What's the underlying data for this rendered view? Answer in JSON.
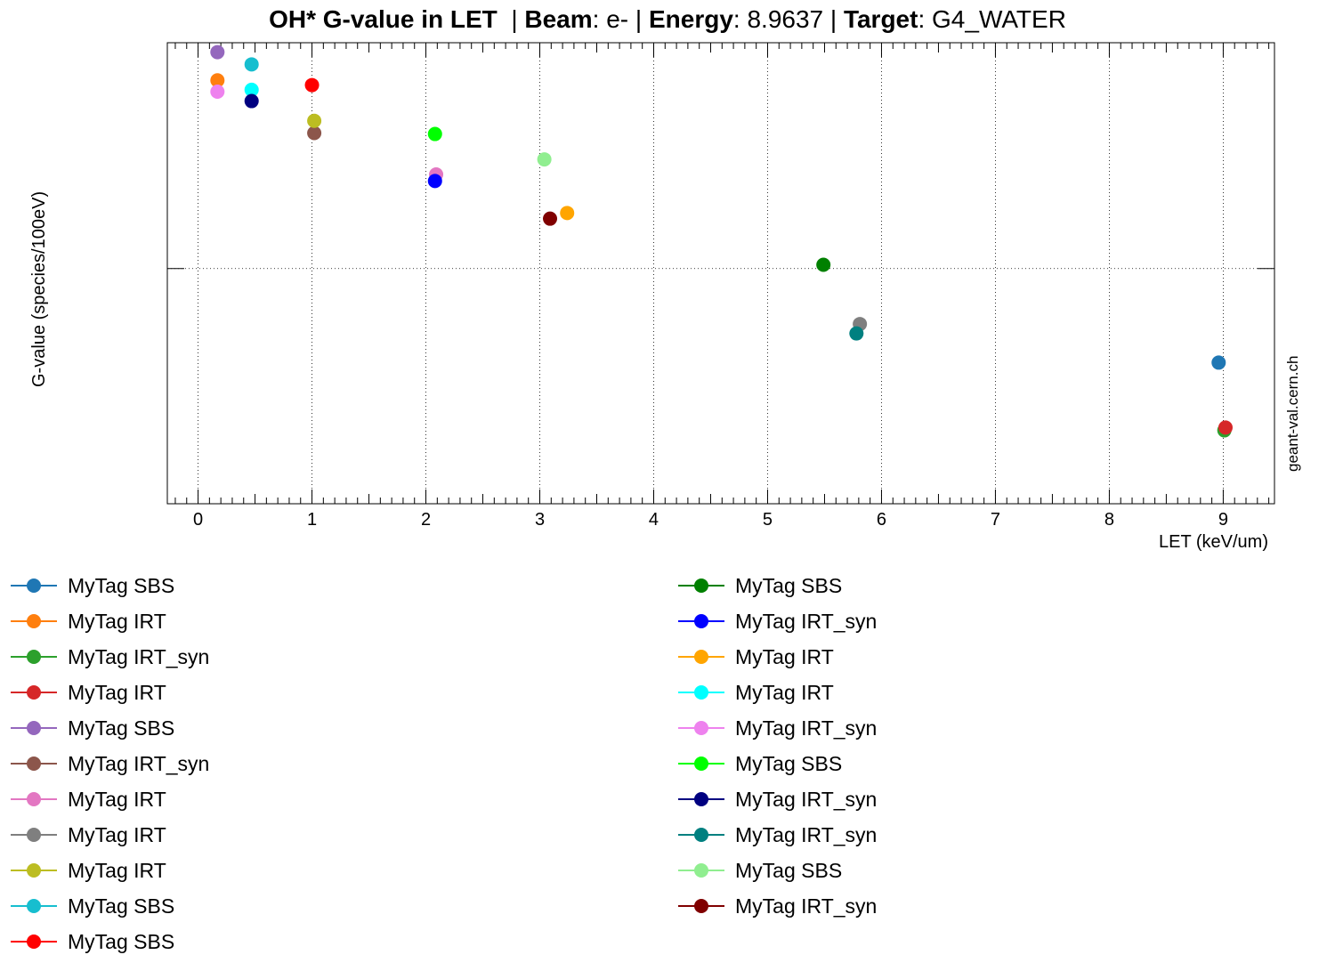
{
  "title": {
    "main": "OH* G-value in LET",
    "beam_label": "Beam",
    "beam_value": "e-",
    "energy_label": "Energy",
    "energy_value": "8.9637",
    "target_label": "Target",
    "target_value": "G4_WATER"
  },
  "watermark": "geant-val.cern.ch",
  "chart_data": {
    "type": "scatter",
    "xlabel": "LET (keV/um)",
    "ylabel": "G-value (species/100eV)",
    "xlim": [
      -0.27,
      9.45
    ],
    "ylim": [
      2.8,
      7.7
    ],
    "x_ticks": [
      0,
      1,
      2,
      3,
      4,
      5,
      6,
      7,
      8,
      9
    ],
    "y_grid_value": 5.3,
    "grid": true,
    "legend_position": "bottom",
    "series": [
      {
        "name": "MyTag SBS",
        "color": "#1f77b4",
        "points": [
          [
            8.96,
            4.3
          ]
        ]
      },
      {
        "name": "MyTag IRT",
        "color": "#ff7f0e",
        "points": [
          [
            0.17,
            7.3
          ]
        ]
      },
      {
        "name": "MyTag IRT_syn",
        "color": "#2ca02c",
        "points": [
          [
            9.01,
            3.58
          ]
        ]
      },
      {
        "name": "MyTag IRT",
        "color": "#d62728",
        "points": [
          [
            9.02,
            3.61
          ]
        ]
      },
      {
        "name": "MyTag SBS",
        "color": "#9467bd",
        "points": [
          [
            0.17,
            7.6
          ]
        ]
      },
      {
        "name": "MyTag IRT_syn",
        "color": "#8c564b",
        "points": [
          [
            1.02,
            6.74
          ]
        ]
      },
      {
        "name": "MyTag IRT",
        "color": "#e377c2",
        "points": [
          [
            2.09,
            6.3
          ]
        ]
      },
      {
        "name": "MyTag IRT",
        "color": "#7f7f7f",
        "points": [
          [
            5.81,
            4.71
          ]
        ]
      },
      {
        "name": "MyTag IRT",
        "color": "#bcbd22",
        "points": [
          [
            1.02,
            6.87
          ]
        ]
      },
      {
        "name": "MyTag SBS",
        "color": "#17becf",
        "points": [
          [
            0.47,
            7.47
          ]
        ]
      },
      {
        "name": "MyTag SBS",
        "color": "#ff0000",
        "points": [
          [
            1.0,
            7.25
          ]
        ]
      },
      {
        "name": "MyTag SBS",
        "color": "#008000",
        "points": [
          [
            5.49,
            5.34
          ]
        ]
      },
      {
        "name": "MyTag IRT_syn",
        "color": "#0000ff",
        "points": [
          [
            2.08,
            6.23
          ]
        ]
      },
      {
        "name": "MyTag IRT",
        "color": "#ffa500",
        "points": [
          [
            3.24,
            5.89
          ]
        ]
      },
      {
        "name": "MyTag IRT",
        "color": "#00ffff",
        "points": [
          [
            0.47,
            7.2
          ]
        ]
      },
      {
        "name": "MyTag IRT_syn",
        "color": "#ee82ee",
        "points": [
          [
            0.17,
            7.18
          ]
        ]
      },
      {
        "name": "MyTag SBS",
        "color": "#00ff00",
        "points": [
          [
            2.08,
            6.73
          ]
        ]
      },
      {
        "name": "MyTag IRT_syn",
        "color": "#000080",
        "points": [
          [
            0.47,
            7.08
          ]
        ]
      },
      {
        "name": "MyTag IRT_syn",
        "color": "#008080",
        "points": [
          [
            5.78,
            4.61
          ]
        ]
      },
      {
        "name": "MyTag SBS",
        "color": "#90ee90",
        "points": [
          [
            3.04,
            6.46
          ]
        ]
      },
      {
        "name": "MyTag IRT_syn",
        "color": "#800000",
        "points": [
          [
            3.09,
            5.83
          ]
        ]
      }
    ]
  }
}
